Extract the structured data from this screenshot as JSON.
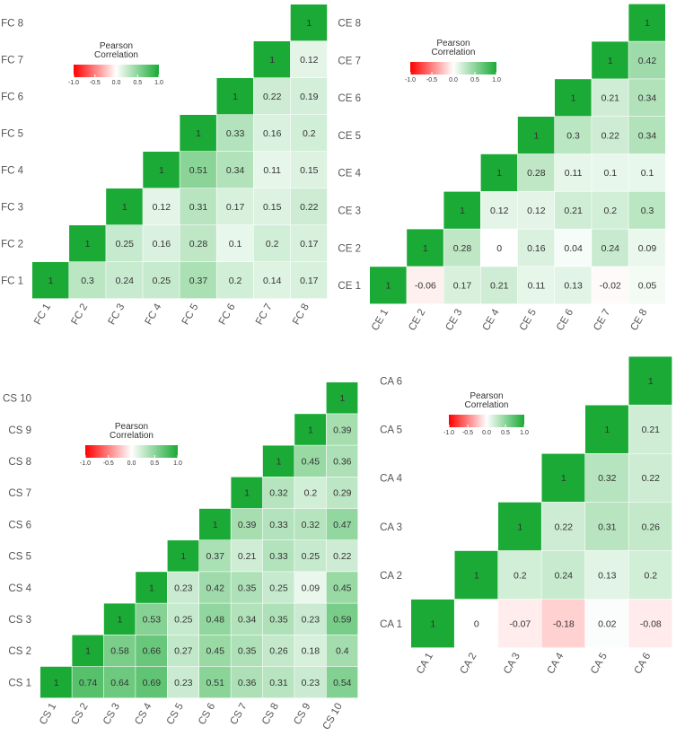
{
  "chart_data": [
    {
      "type": "heatmap",
      "id": "fc",
      "labels": [
        "FC 1",
        "FC 2",
        "FC 3",
        "FC 4",
        "FC 5",
        "FC 6",
        "FC 7",
        "FC 8"
      ],
      "matrix": [
        [
          1
        ],
        [
          0.3,
          1
        ],
        [
          0.24,
          0.25,
          1
        ],
        [
          0.25,
          0.16,
          0.12,
          1
        ],
        [
          0.37,
          0.28,
          0.31,
          0.51,
          1
        ],
        [
          0.2,
          0.1,
          0.17,
          0.34,
          0.33,
          1
        ],
        [
          0.14,
          0.2,
          0.15,
          0.11,
          0.16,
          0.22,
          1
        ],
        [
          0.17,
          0.17,
          0.22,
          0.15,
          0.2,
          0.19,
          0.12,
          1
        ]
      ],
      "legend": {
        "title": "Pearson\nCorrelation",
        "ticks": [
          "-1.0",
          "-0.5",
          "0.0",
          "0.5",
          "1.0"
        ],
        "range": [
          -1,
          1
        ]
      }
    },
    {
      "type": "heatmap",
      "id": "ce",
      "labels": [
        "CE 1",
        "CE 2",
        "CE 3",
        "CE 4",
        "CE 5",
        "CE 6",
        "CE 7",
        "CE 8"
      ],
      "matrix": [
        [
          1
        ],
        [
          -0.06,
          1
        ],
        [
          0.17,
          0.28,
          1
        ],
        [
          0.21,
          0,
          0.12,
          1
        ],
        [
          0.11,
          0.16,
          0.12,
          0.28,
          1
        ],
        [
          0.13,
          0.04,
          0.21,
          0.11,
          0.3,
          1
        ],
        [
          -0.02,
          0.24,
          0.2,
          0.1,
          0.22,
          0.21,
          1
        ],
        [
          0.05,
          0.09,
          0.3,
          0.1,
          0.34,
          0.34,
          0.42,
          1
        ]
      ],
      "legend": {
        "title": "Pearson\nCorrelation",
        "ticks": [
          "-1.0",
          "-0.5",
          "0.0",
          "0.5",
          "1.0"
        ],
        "range": [
          -1,
          1
        ]
      }
    },
    {
      "type": "heatmap",
      "id": "cs",
      "labels": [
        "CS 1",
        "CS 2",
        "CS 3",
        "CS 4",
        "CS 5",
        "CS 6",
        "CS 7",
        "CS 8",
        "CS 9",
        "CS 10"
      ],
      "matrix": [
        [
          1
        ],
        [
          0.74,
          1
        ],
        [
          0.64,
          0.58,
          1
        ],
        [
          0.69,
          0.66,
          0.53,
          1
        ],
        [
          0.23,
          0.27,
          0.25,
          0.23,
          1
        ],
        [
          0.51,
          0.45,
          0.48,
          0.42,
          0.37,
          1
        ],
        [
          0.36,
          0.35,
          0.34,
          0.35,
          0.21,
          0.39,
          1
        ],
        [
          0.31,
          0.26,
          0.35,
          0.25,
          0.33,
          0.33,
          0.32,
          1
        ],
        [
          0.23,
          0.18,
          0.23,
          0.09,
          0.25,
          0.32,
          0.2,
          0.45,
          1
        ],
        [
          0.54,
          0.4,
          0.59,
          0.45,
          0.22,
          0.47,
          0.29,
          0.36,
          0.39,
          1
        ]
      ],
      "legend": {
        "title": "Pearson\nCorrelation",
        "ticks": [
          "-1.0",
          "-0.5",
          "0.0",
          "0.5",
          "1.0"
        ],
        "range": [
          -1,
          1
        ]
      }
    },
    {
      "type": "heatmap",
      "id": "ca",
      "labels": [
        "CA 1",
        "CA 2",
        "CA 3",
        "CA 4",
        "CA 5",
        "CA 6"
      ],
      "matrix": [
        [
          1
        ],
        [
          0,
          1
        ],
        [
          -0.07,
          0.2,
          1
        ],
        [
          -0.18,
          0.24,
          0.22,
          1
        ],
        [
          0.02,
          0.13,
          0.31,
          0.32,
          1
        ],
        [
          -0.08,
          0.2,
          0.26,
          0.22,
          0.21,
          1
        ]
      ],
      "legend": {
        "title": "Pearson\nCorrelation",
        "ticks": [
          "-1.0",
          "-0.5",
          "0.0",
          "0.5",
          "1.0"
        ],
        "range": [
          -1,
          1
        ]
      }
    }
  ],
  "colors": {
    "negative": "#ff0000",
    "zero": "#ffffff",
    "positive": "#1aaa35",
    "axis_text": "#555555",
    "value_text": "#333333"
  }
}
